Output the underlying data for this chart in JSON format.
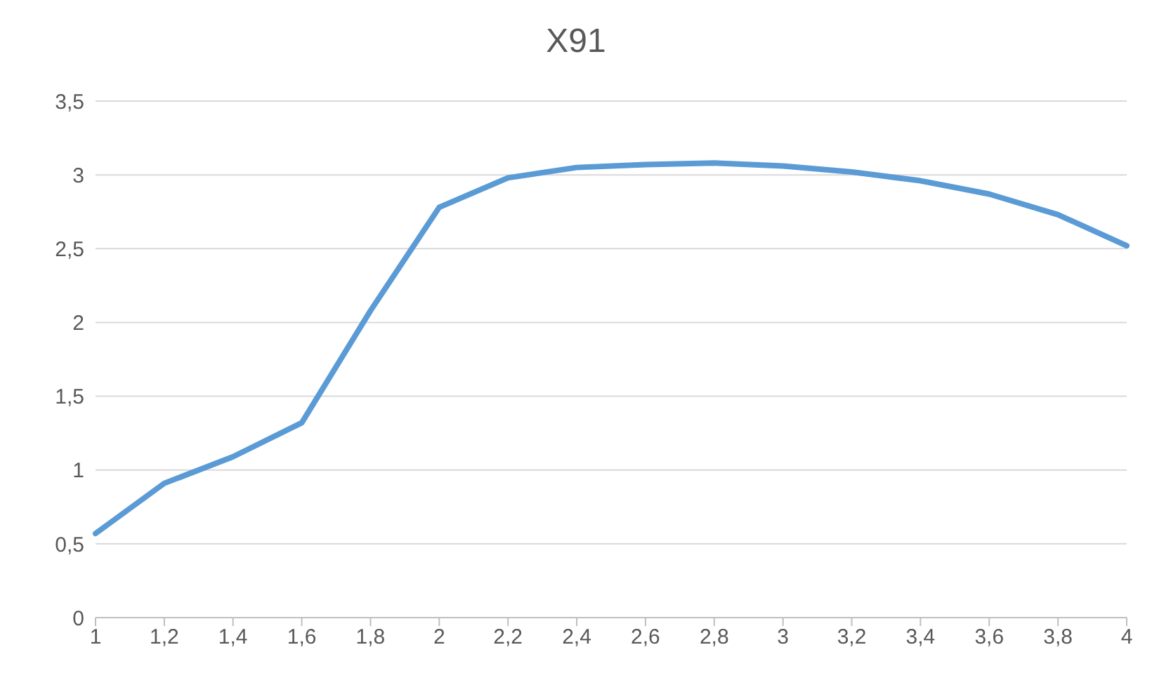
{
  "chart_data": {
    "type": "line",
    "title": "X91",
    "categories": [
      "1",
      "1,2",
      "1,4",
      "1,6",
      "1,8",
      "2",
      "2,2",
      "2,4",
      "2,6",
      "2,8",
      "3",
      "3,2",
      "3,4",
      "3,6",
      "3,8",
      "4"
    ],
    "series": [
      {
        "color": "#5b9bd5",
        "values": [
          0.57,
          0.91,
          1.09,
          1.32,
          2.08,
          2.78,
          2.98,
          3.05,
          3.07,
          3.08,
          3.06,
          3.02,
          2.96,
          2.87,
          2.73,
          2.52
        ]
      }
    ],
    "ylim": [
      0,
      3.5
    ],
    "yticks": [
      0,
      {
        "value": 0.5,
        "label": "0,5"
      },
      1,
      {
        "value": 1.5,
        "label": "1,5"
      },
      2,
      {
        "value": 2.5,
        "label": "2,5"
      },
      3,
      {
        "value": 3.5,
        "label": "3,5"
      }
    ],
    "grid": "y",
    "legend": false,
    "marker": "none",
    "line_style": "solid"
  }
}
